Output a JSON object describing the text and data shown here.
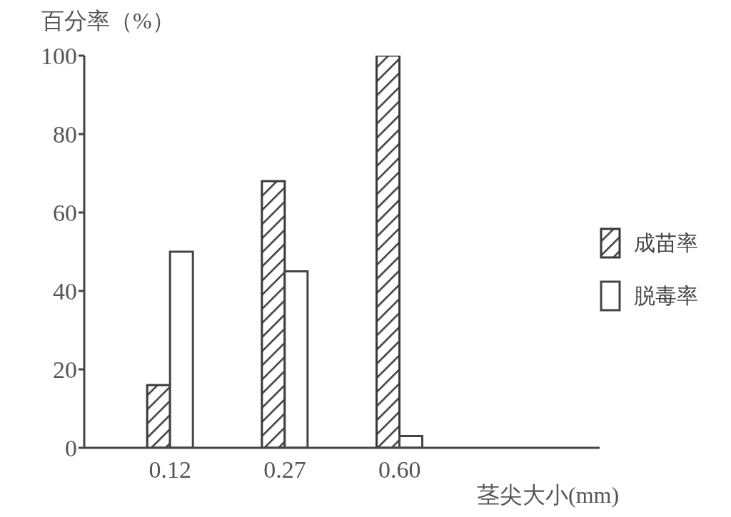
{
  "chart_data": {
    "type": "bar",
    "ylabel": "百分率（%）",
    "xlabel": "茎尖大小(mm)",
    "categories": [
      "0.12",
      "0.27",
      "0.60"
    ],
    "series": [
      {
        "name": "成苗率",
        "color": "#3a3a3a",
        "values": [
          16,
          68,
          100
        ]
      },
      {
        "name": "脱毒率",
        "color": "#444444",
        "values": [
          50,
          45,
          3
        ]
      }
    ],
    "ylim": [
      0,
      100
    ],
    "yticks": [
      0,
      20,
      40,
      60,
      80,
      100
    ],
    "grid": false,
    "legend": "right"
  }
}
